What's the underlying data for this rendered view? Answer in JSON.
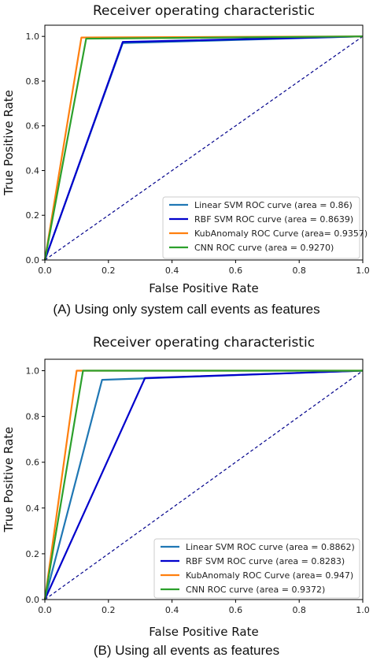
{
  "chart_data": [
    {
      "type": "line",
      "title": "Receiver operating characteristic",
      "xlabel": "False Positive Rate",
      "ylabel": "True Positive Rate",
      "xlim": [
        0,
        1
      ],
      "ylim": [
        0,
        1.05
      ],
      "xticks": [
        "0.0",
        "0.2",
        "0.4",
        "0.6",
        "0.8",
        "1.0"
      ],
      "yticks": [
        "0.0",
        "0.2",
        "0.4",
        "0.6",
        "0.8",
        "1.0"
      ],
      "grid": false,
      "legend_position": "lower-right",
      "caption": "(A) Using only system call events as features",
      "series": [
        {
          "name": "Linear SVM ROC curve (area = 0.86)",
          "color": "#1f77b4",
          "x": [
            0,
            0.245,
            1
          ],
          "y": [
            0,
            0.97,
            1
          ]
        },
        {
          "name": "RBF SVM ROC curve (area = 0.8639)",
          "color": "#0000cc",
          "x": [
            0,
            0.245,
            1
          ],
          "y": [
            0,
            0.975,
            1
          ]
        },
        {
          "name": "KubAnomaly ROC Curve (area= 0.9357)",
          "color": "#ff7f0e",
          "x": [
            0,
            0.115,
            1
          ],
          "y": [
            0,
            0.995,
            1
          ]
        },
        {
          "name": "CNN ROC curve (area = 0.9270)",
          "color": "#2ca02c",
          "x": [
            0,
            0.13,
            1
          ],
          "y": [
            0,
            0.99,
            1
          ]
        }
      ],
      "diagonal": {
        "color": "#00008b",
        "style": "dashed"
      }
    },
    {
      "type": "line",
      "title": "Receiver operating characteristic",
      "xlabel": "False Positive Rate",
      "ylabel": "True Positive Rate",
      "xlim": [
        0,
        1
      ],
      "ylim": [
        0,
        1.05
      ],
      "xticks": [
        "0.0",
        "0.2",
        "0.4",
        "0.6",
        "0.8",
        "1.0"
      ],
      "yticks": [
        "0.0",
        "0.2",
        "0.4",
        "0.6",
        "0.8",
        "1.0"
      ],
      "grid": false,
      "legend_position": "lower-right",
      "caption": "(B) Using all events as features",
      "series": [
        {
          "name": "Linear SVM ROC curve (area = 0.8862)",
          "color": "#1f77b4",
          "x": [
            0,
            0.18,
            1
          ],
          "y": [
            0,
            0.96,
            1
          ]
        },
        {
          "name": "RBF SVM ROC curve (area = 0.8283)",
          "color": "#0000cc",
          "x": [
            0,
            0.315,
            1
          ],
          "y": [
            0,
            0.968,
            1
          ]
        },
        {
          "name": "KubAnomaly ROC Curve (area= 0.947)",
          "color": "#ff7f0e",
          "x": [
            0,
            0.1,
            1
          ],
          "y": [
            0,
            1.0,
            1
          ]
        },
        {
          "name": "CNN ROC curve (area = 0.9372)",
          "color": "#2ca02c",
          "x": [
            0,
            0.12,
            1
          ],
          "y": [
            0,
            1.0,
            1
          ]
        }
      ],
      "diagonal": {
        "color": "#00008b",
        "style": "dashed"
      }
    }
  ]
}
